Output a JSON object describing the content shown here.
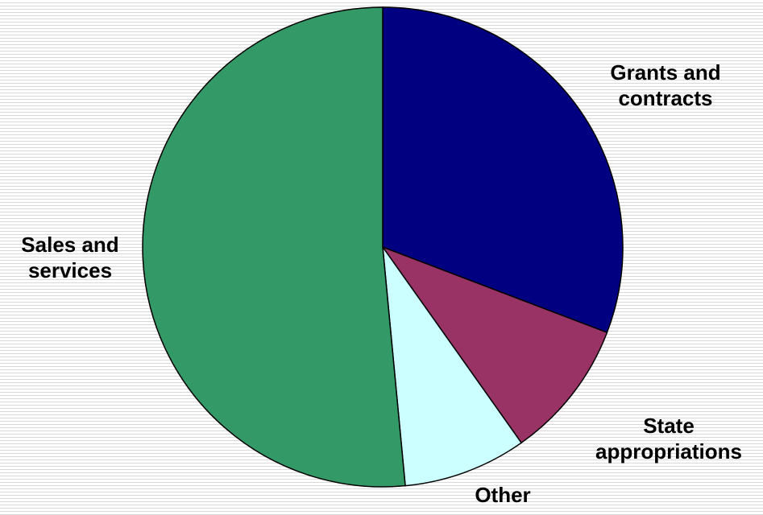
{
  "chart_data": {
    "type": "pie",
    "slices": [
      {
        "label": "Grants and contracts",
        "label_lines": [
          "Grants and",
          "contracts"
        ],
        "value": 30.8,
        "color": "#000080"
      },
      {
        "label": "State appropriations",
        "label_lines": [
          "State",
          "appropriations"
        ],
        "value": 9.4,
        "color": "#993366"
      },
      {
        "label": "Other",
        "label_lines": [
          "Other"
        ],
        "value": 8.3,
        "color": "#ccffff"
      },
      {
        "label": "Sales and services",
        "label_lines": [
          "Sales and",
          "services"
        ],
        "value": 51.5,
        "color": "#339966"
      }
    ],
    "start_angle_deg": 0,
    "direction": "clockwise",
    "legend": "none",
    "title": "",
    "data_labels": "category-names"
  }
}
